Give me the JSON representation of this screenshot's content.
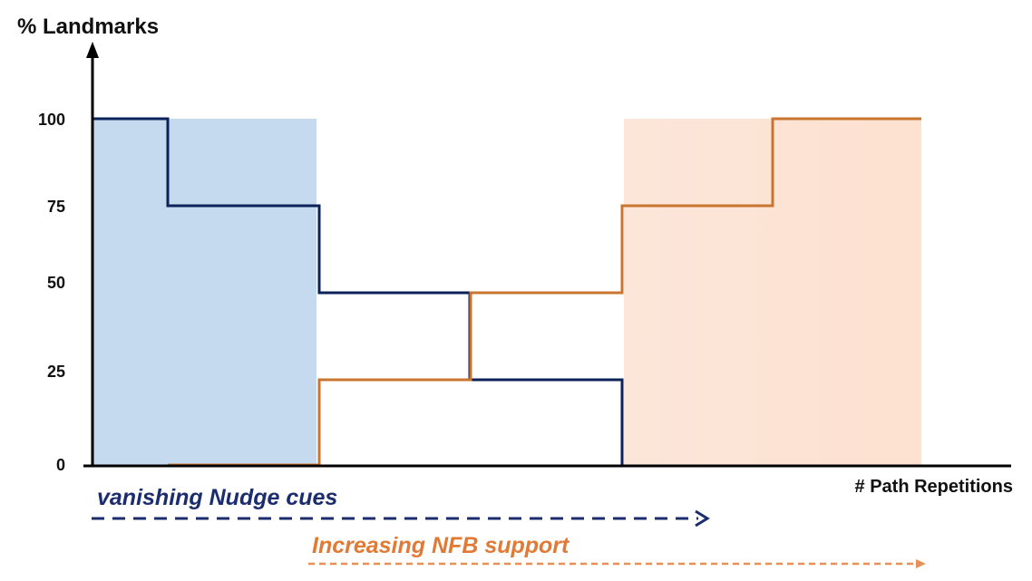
{
  "colors": {
    "nudge": "#0d2258",
    "nfb": "#c9752f",
    "nudge_fill": "#c5daef",
    "nfb_fill": "#fde3d4",
    "axis": "#000000"
  },
  "y_axis": {
    "label": "% Landmarks",
    "ticks": [
      "100",
      "75",
      "50",
      "25",
      "0"
    ]
  },
  "x_axis": {
    "label": "# Path Repetitions"
  },
  "captions": {
    "nudge": "vanishing Nudge cues",
    "nfb": "Increasing NFB support"
  },
  "chart_data": {
    "type": "line",
    "ylabel": "% Landmarks",
    "xlabel": "# Path Repetitions",
    "ylim": [
      0,
      100
    ],
    "y_ticks": [
      0,
      25,
      50,
      75,
      100
    ],
    "series": [
      {
        "name": "vanishing Nudge cues",
        "style": "step",
        "values": [
          100,
          75,
          75,
          50,
          50,
          25,
          25,
          0
        ]
      },
      {
        "name": "Increasing NFB support",
        "style": "step",
        "values": [
          0,
          0,
          25,
          25,
          50,
          50,
          75,
          75,
          100,
          100
        ]
      }
    ]
  }
}
